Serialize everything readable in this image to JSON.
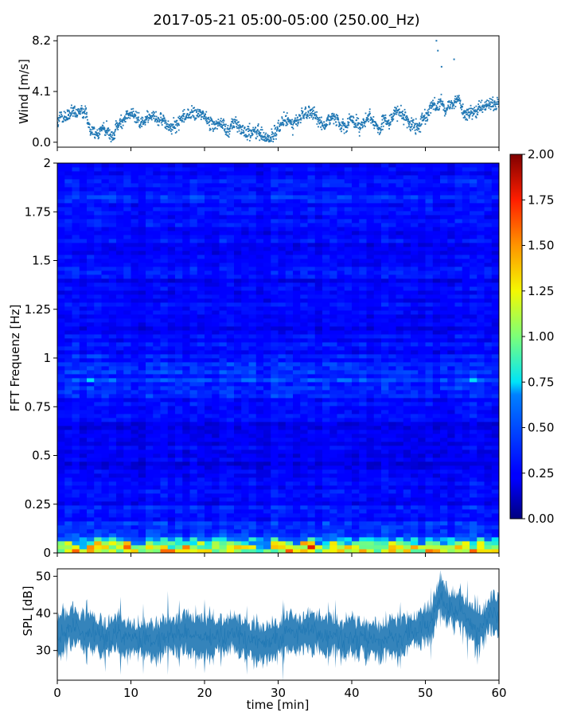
{
  "title": "2017-05-21 05:00-05:00 (250.00_Hz)",
  "chart_data": [
    {
      "type": "scatter",
      "name": "wind",
      "ylabel": "Wind [m/s]",
      "xlim": [
        0,
        60
      ],
      "ylim": [
        -0.4,
        8.6
      ],
      "yticks": [
        "0.0",
        "4.1",
        "8.2"
      ],
      "ytick_values": [
        0.0,
        4.1,
        8.2
      ],
      "color": "#1f77b4",
      "level_profile": [
        [
          0,
          1.6
        ],
        [
          2,
          2.2
        ],
        [
          4,
          1.8
        ],
        [
          5,
          1.2
        ],
        [
          7,
          0.8
        ],
        [
          9,
          1.6
        ],
        [
          10,
          2.3
        ],
        [
          12,
          1.5
        ],
        [
          14,
          1.8
        ],
        [
          16,
          1.3
        ],
        [
          18,
          2.4
        ],
        [
          20,
          2.2
        ],
        [
          22,
          1.6
        ],
        [
          24,
          1.2
        ],
        [
          26,
          0.9
        ],
        [
          28,
          0.7
        ],
        [
          29,
          0.6
        ],
        [
          30,
          1.8
        ],
        [
          32,
          1.4
        ],
        [
          34,
          2.2
        ],
        [
          36,
          1.5
        ],
        [
          38,
          1.8
        ],
        [
          40,
          1.9
        ],
        [
          42,
          1.5
        ],
        [
          44,
          1.2
        ],
        [
          46,
          2.3
        ],
        [
          48,
          1.8
        ],
        [
          50,
          2.1
        ],
        [
          51,
          3.0
        ],
        [
          52,
          3.5
        ],
        [
          53,
          3.2
        ],
        [
          54,
          3.8
        ],
        [
          56,
          2.4
        ],
        [
          58,
          2.6
        ],
        [
          60,
          3.0
        ]
      ],
      "outliers": [
        [
          51.5,
          8.2
        ],
        [
          51.7,
          7.4
        ],
        [
          53.9,
          6.7
        ],
        [
          52.2,
          6.1
        ]
      ]
    },
    {
      "type": "heatmap",
      "name": "spectrogram",
      "ylabel": "FFT Frequenz [Hz]",
      "xlim": [
        0,
        60
      ],
      "ylim": [
        0,
        2
      ],
      "yticks": [
        "0",
        "0.25",
        "0.5",
        "0.75",
        "1",
        "1.25",
        "1.5",
        "1.75",
        "2"
      ],
      "ytick_values": [
        0,
        0.25,
        0.5,
        0.75,
        1,
        1.25,
        1.5,
        1.75,
        2
      ],
      "colormap": "jet",
      "clim": [
        0,
        2
      ],
      "colorbar_ticks": [
        "0.00",
        "0.25",
        "0.50",
        "0.75",
        "1.00",
        "1.25",
        "1.50",
        "1.75",
        "2.00"
      ],
      "colorbar_tick_values": [
        0,
        0.25,
        0.5,
        0.75,
        1,
        1.25,
        1.5,
        1.75,
        2
      ],
      "band_profile": [
        [
          0.0,
          1.4
        ],
        [
          0.02,
          1.1
        ],
        [
          0.05,
          0.7
        ],
        [
          0.1,
          0.45
        ],
        [
          0.2,
          0.3
        ],
        [
          0.4,
          0.22
        ],
        [
          0.6,
          0.2
        ],
        [
          0.75,
          0.28
        ],
        [
          0.85,
          0.42
        ],
        [
          0.9,
          0.38
        ],
        [
          1.0,
          0.3
        ],
        [
          1.1,
          0.25
        ],
        [
          1.4,
          0.24
        ],
        [
          1.7,
          0.3
        ],
        [
          1.85,
          0.33
        ],
        [
          2.0,
          0.3
        ]
      ]
    },
    {
      "type": "line",
      "name": "spl",
      "ylabel": "SPL [dB]",
      "xlabel": "time [min]",
      "xlim": [
        0,
        60
      ],
      "ylim": [
        22,
        52
      ],
      "yticks": [
        "30",
        "40",
        "50"
      ],
      "ytick_values": [
        30,
        40,
        50
      ],
      "xticks": [
        "0",
        "10",
        "20",
        "30",
        "40",
        "50",
        "60"
      ],
      "xtick_values": [
        0,
        10,
        20,
        30,
        40,
        50,
        60
      ],
      "color": "#1f77b4",
      "level_profile": [
        [
          0,
          33
        ],
        [
          2,
          37
        ],
        [
          4,
          35
        ],
        [
          6,
          33
        ],
        [
          8,
          34
        ],
        [
          10,
          33
        ],
        [
          12,
          32
        ],
        [
          14,
          33
        ],
        [
          16,
          34
        ],
        [
          18,
          35
        ],
        [
          20,
          33
        ],
        [
          22,
          34
        ],
        [
          24,
          35
        ],
        [
          26,
          34
        ],
        [
          28,
          32
        ],
        [
          30,
          34
        ],
        [
          32,
          35
        ],
        [
          34,
          36
        ],
        [
          36,
          35
        ],
        [
          38,
          34
        ],
        [
          40,
          34
        ],
        [
          42,
          33
        ],
        [
          44,
          33
        ],
        [
          46,
          34
        ],
        [
          48,
          35
        ],
        [
          50,
          37
        ],
        [
          51,
          38
        ],
        [
          52,
          46
        ],
        [
          53,
          41
        ],
        [
          55,
          40
        ],
        [
          57,
          36
        ],
        [
          59,
          40
        ],
        [
          60,
          39
        ]
      ]
    }
  ]
}
